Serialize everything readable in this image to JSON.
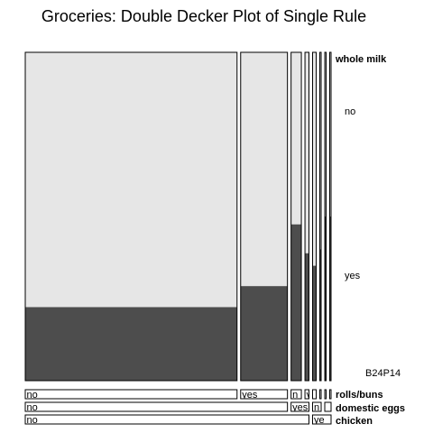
{
  "chart_data": {
    "type": "mosaic",
    "title": "Groceries: Double Decker Plot of Single Rule",
    "response": {
      "name": "whole milk",
      "levels": [
        "no",
        "yes"
      ]
    },
    "factors": [
      {
        "name": "rolls/buns",
        "levels": [
          "no",
          "yes",
          "no",
          "yes",
          "no",
          "yes",
          "no",
          "yes"
        ]
      },
      {
        "name": "domestic eggs",
        "levels": [
          "no",
          "yes",
          "no",
          "yes"
        ]
      },
      {
        "name": "chicken",
        "levels": [
          "no",
          "yes"
        ]
      }
    ],
    "bottom_labels": {
      "rolls_buns": [
        "no",
        "yes",
        "n",
        "y",
        "",
        "",
        "",
        ""
      ],
      "domestic_eggs": [
        "no",
        "yes",
        "n",
        ""
      ],
      "chicken": [
        "no",
        "ye"
      ]
    },
    "cells": [
      {
        "rolls_buns": "no",
        "domestic_eggs": "no",
        "chicken": "no",
        "proportion": 0.638,
        "p_whole_milk_yes": 0.224
      },
      {
        "rolls_buns": "yes",
        "domestic_eggs": "no",
        "chicken": "no",
        "proportion": 0.141,
        "p_whole_milk_yes": 0.288
      },
      {
        "rolls_buns": "no",
        "domestic_eggs": "yes",
        "chicken": "no",
        "proportion": 0.031,
        "p_whole_milk_yes": 0.476
      },
      {
        "rolls_buns": "yes",
        "domestic_eggs": "yes",
        "chicken": "no",
        "proportion": 0.012,
        "p_whole_milk_yes": 0.388
      },
      {
        "rolls_buns": "no",
        "domestic_eggs": "no",
        "chicken": "yes",
        "proportion": 0.011,
        "p_whole_milk_yes": 0.35
      },
      {
        "rolls_buns": "yes",
        "domestic_eggs": "no",
        "chicken": "yes",
        "proportion": 0.004,
        "p_whole_milk_yes": 0.4
      },
      {
        "rolls_buns": "no",
        "domestic_eggs": "yes",
        "chicken": "yes",
        "proportion": 0.002,
        "p_whole_milk_yes": 0.5
      },
      {
        "rolls_buns": "yes",
        "domestic_eggs": "yes",
        "chicken": "yes",
        "proportion": 0.001,
        "p_whole_milk_yes": 0.5
      }
    ],
    "annotation": "B24P14",
    "colors": {
      "no": "#e6e6e6",
      "yes": "#4d4d4d",
      "border": "#000000"
    },
    "grid": false,
    "legend": "right"
  }
}
